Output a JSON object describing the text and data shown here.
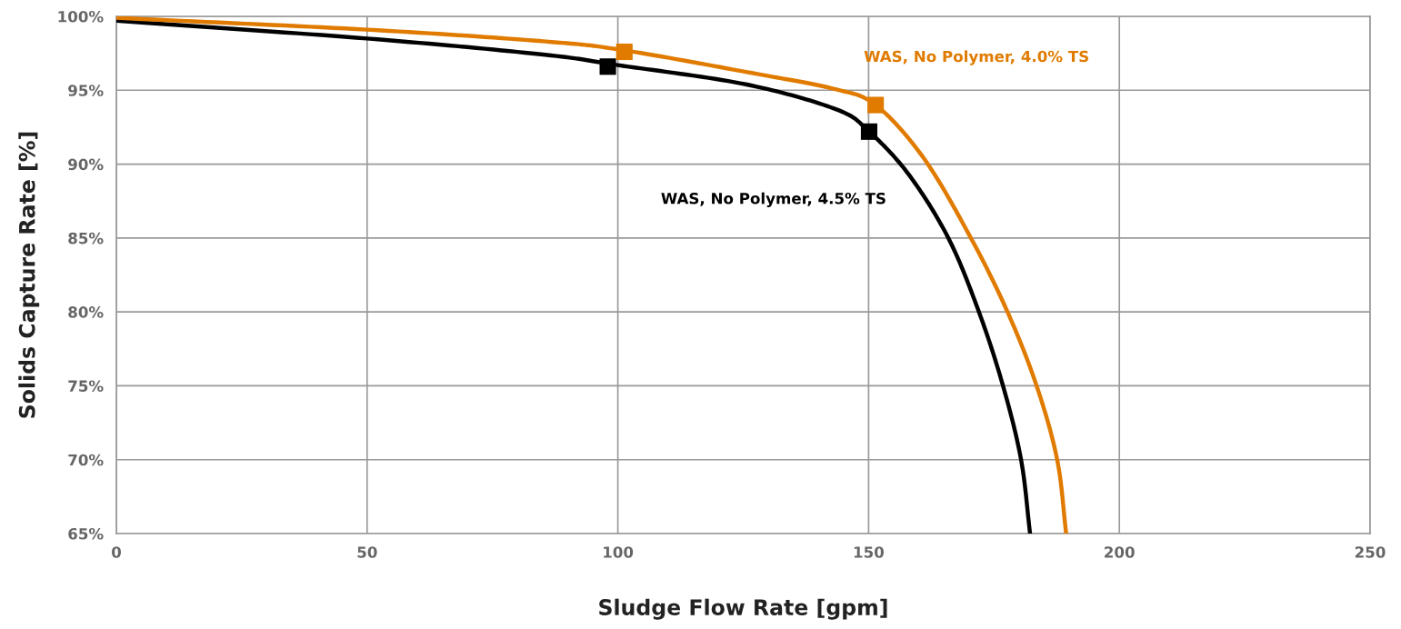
{
  "chart_data": {
    "type": "line",
    "xlabel": "Sludge Flow Rate [gpm]",
    "ylabel": "Solids Capture Rate [%]",
    "xlim": [
      0,
      250
    ],
    "xticks": [
      0,
      50,
      100,
      150,
      200,
      250
    ],
    "ylim": [
      65,
      100
    ],
    "yticks": [
      {
        "value": 65,
        "label": "65%"
      },
      {
        "value": 70,
        "label": "70%"
      },
      {
        "value": 75,
        "label": "75%"
      },
      {
        "value": 80,
        "label": "80%"
      },
      {
        "value": 85,
        "label": "85%"
      },
      {
        "value": 90,
        "label": "90%"
      },
      {
        "value": 95,
        "label": "95%"
      },
      {
        "value": 100,
        "label": "100%"
      }
    ],
    "grid": true,
    "legend": false,
    "line_style": "solid",
    "series": [
      {
        "name": "WAS, No Polymer, 4.5% TS",
        "marker": "none",
        "color": "#000000",
        "x": [
          0,
          50,
          85.5,
          100,
          125.5,
          143.6,
          150.1,
          158,
          165.9,
          172,
          176.8,
          180.4,
          182.2
        ],
        "values": [
          99.7,
          98.5,
          97.4,
          96.7,
          95.4,
          93.7,
          92.2,
          89.3,
          85,
          80,
          75,
          70,
          65
        ]
      },
      {
        "name": "WAS, No Polymer, 4.0% TS",
        "marker": "none",
        "color": "#e07b00",
        "x": [
          0,
          50,
          85.6,
          101.3,
          127.8,
          143,
          151.4,
          161,
          170.4,
          177.7,
          183.5,
          187.6,
          189.4
        ],
        "values": [
          99.9,
          99.1,
          98.3,
          97.7,
          96.1,
          95.1,
          94,
          90.4,
          85,
          80,
          75,
          70,
          65
        ]
      },
      {
        "type": "scatter",
        "marker": "square",
        "color": "#000000",
        "x": [
          98,
          150.1
        ],
        "values": [
          96.6,
          92.2
        ]
      },
      {
        "type": "scatter",
        "marker": "square",
        "color": "#e07b00",
        "x": [
          101.3,
          151.4
        ],
        "values": [
          97.6,
          94
        ]
      }
    ]
  }
}
